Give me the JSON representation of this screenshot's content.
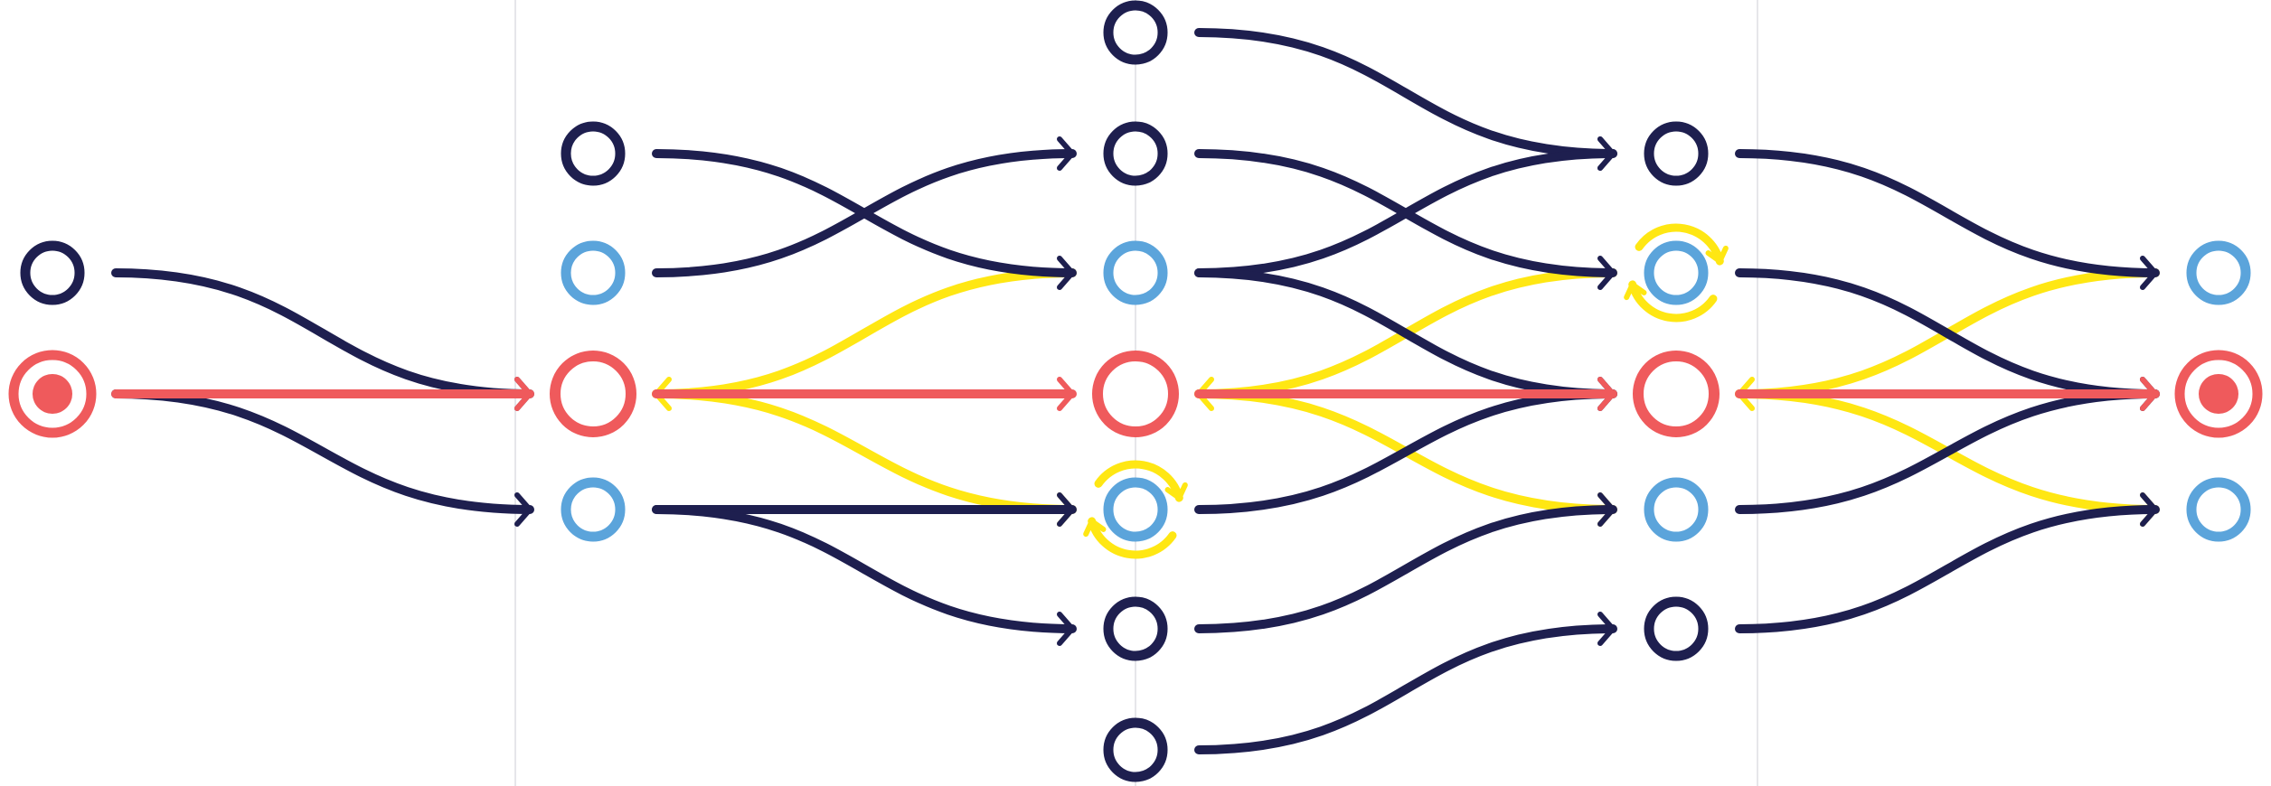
{
  "colors": {
    "navy": "#1E1F4F",
    "blue": "#5BA4DB",
    "red": "#EF5A5C",
    "yellow": "#FFE713",
    "guide": "#e6e6ea"
  },
  "diagram": {
    "columns": [
      {
        "id": "c0",
        "nodes": [
          {
            "id": "c0-r2",
            "row": 2,
            "kind": "navy"
          },
          {
            "id": "c0-r3",
            "row": 3,
            "kind": "red-target"
          }
        ]
      },
      {
        "id": "c1",
        "nodes": [
          {
            "id": "c1-r1",
            "row": 1,
            "kind": "navy"
          },
          {
            "id": "c1-r2",
            "row": 2,
            "kind": "blue"
          },
          {
            "id": "c1-r3",
            "row": 3,
            "kind": "red"
          },
          {
            "id": "c1-r4",
            "row": 4,
            "kind": "blue"
          }
        ]
      },
      {
        "id": "c2",
        "nodes": [
          {
            "id": "c2-r0",
            "row": 0,
            "kind": "navy"
          },
          {
            "id": "c2-r1",
            "row": 1,
            "kind": "navy"
          },
          {
            "id": "c2-r2",
            "row": 2,
            "kind": "blue"
          },
          {
            "id": "c2-r3",
            "row": 3,
            "kind": "red"
          },
          {
            "id": "c2-r4",
            "row": 4,
            "kind": "blue",
            "loop": true
          },
          {
            "id": "c2-r5",
            "row": 5,
            "kind": "navy"
          },
          {
            "id": "c2-r6",
            "row": 6,
            "kind": "navy"
          }
        ]
      },
      {
        "id": "c3",
        "nodes": [
          {
            "id": "c3-r1",
            "row": 1,
            "kind": "navy"
          },
          {
            "id": "c3-r2",
            "row": 2,
            "kind": "blue",
            "loop": true
          },
          {
            "id": "c3-r3",
            "row": 3,
            "kind": "red"
          },
          {
            "id": "c3-r4",
            "row": 4,
            "kind": "blue"
          },
          {
            "id": "c3-r5",
            "row": 5,
            "kind": "navy"
          }
        ]
      },
      {
        "id": "c4",
        "nodes": [
          {
            "id": "c4-r2",
            "row": 2,
            "kind": "blue"
          },
          {
            "id": "c4-r3",
            "row": 3,
            "kind": "red-target"
          },
          {
            "id": "c4-r4",
            "row": 4,
            "kind": "blue"
          }
        ]
      }
    ],
    "edges": [
      {
        "from": "c0-r2",
        "to": "c1-r3",
        "color": "navy"
      },
      {
        "from": "c0-r3",
        "to": "c1-r4",
        "color": "navy"
      },
      {
        "from": "c0-r3",
        "to": "c1-r3",
        "color": "red"
      },
      {
        "from": "c1-r1",
        "to": "c2-r2",
        "color": "navy"
      },
      {
        "from": "c1-r2",
        "to": "c2-r1",
        "color": "navy"
      },
      {
        "from": "c1-r4",
        "to": "c2-r4",
        "color": "navy"
      },
      {
        "from": "c1-r4",
        "to": "c2-r5",
        "color": "navy"
      },
      {
        "from": "c1-r3",
        "to": "c2-r3",
        "color": "red"
      },
      {
        "from": "c2-r2",
        "to": "c1-r3",
        "color": "yellow"
      },
      {
        "from": "c1-r3",
        "to": "c2-r4",
        "color": "yellow"
      },
      {
        "from": "c2-r0",
        "to": "c3-r1",
        "color": "navy"
      },
      {
        "from": "c2-r1",
        "to": "c3-r2",
        "color": "navy"
      },
      {
        "from": "c2-r2",
        "to": "c3-r1",
        "color": "navy"
      },
      {
        "from": "c2-r2",
        "to": "c3-r3",
        "color": "navy"
      },
      {
        "from": "c2-r4",
        "to": "c3-r3",
        "color": "navy"
      },
      {
        "from": "c2-r5",
        "to": "c3-r4",
        "color": "navy"
      },
      {
        "from": "c2-r6",
        "to": "c3-r5",
        "color": "navy"
      },
      {
        "from": "c2-r3",
        "to": "c3-r3",
        "color": "red"
      },
      {
        "from": "c3-r2",
        "to": "c2-r3",
        "color": "yellow"
      },
      {
        "from": "c2-r3",
        "to": "c3-r4",
        "color": "yellow"
      },
      {
        "from": "c3-r1",
        "to": "c4-r2",
        "color": "navy"
      },
      {
        "from": "c3-r2",
        "to": "c4-r3",
        "color": "navy"
      },
      {
        "from": "c3-r4",
        "to": "c4-r3",
        "color": "navy"
      },
      {
        "from": "c3-r5",
        "to": "c4-r4",
        "color": "navy"
      },
      {
        "from": "c3-r3",
        "to": "c4-r3",
        "color": "red"
      },
      {
        "from": "c4-r2",
        "to": "c3-r3",
        "color": "yellow"
      },
      {
        "from": "c3-r3",
        "to": "c4-r4",
        "color": "yellow"
      }
    ]
  }
}
